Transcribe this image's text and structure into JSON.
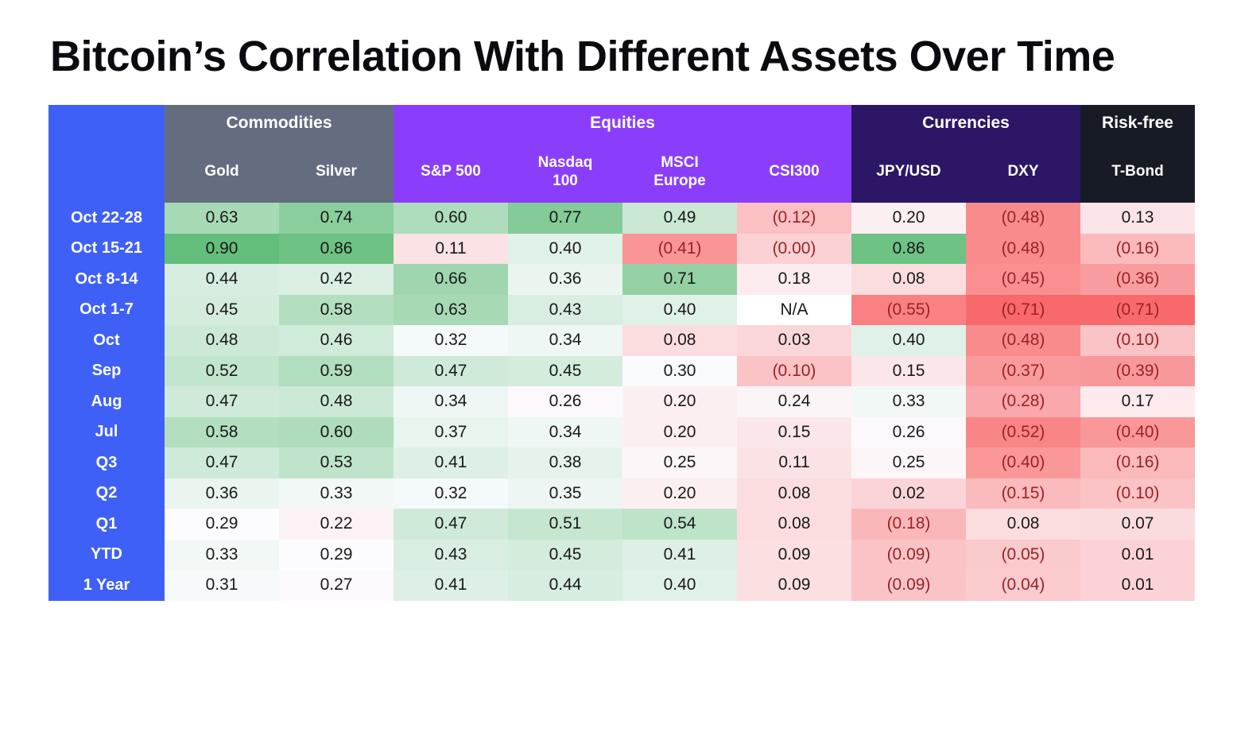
{
  "page": {
    "title": "Bitcoin’s Correlation With Different Assets Over Time"
  },
  "table": {
    "row_label_color": "#3f60f7",
    "positive_text_color": "#191919",
    "negative_text_color": "#9b2226",
    "na_background": "#ffffff",
    "groups": [
      {
        "label": "Commodities",
        "color": "#646d80"
      },
      {
        "label": "Equities",
        "color": "#8a3efb"
      },
      {
        "label": "Currencies",
        "color": "#2b1766"
      },
      {
        "label": "Risk-free",
        "color": "#171b26"
      }
    ],
    "columns": [
      {
        "label": "Gold",
        "group": 0
      },
      {
        "label": "Silver",
        "group": 0
      },
      {
        "label": "S&P 500",
        "group": 1
      },
      {
        "label": "Nasdaq\n100",
        "group": 1
      },
      {
        "label": "MSCI\nEurope",
        "group": 1
      },
      {
        "label": "CSI300",
        "group": 1
      },
      {
        "label": "JPY/USD",
        "group": 2
      },
      {
        "label": "DXY",
        "group": 2
      },
      {
        "label": "T-Bond",
        "group": 3
      }
    ]
  },
  "chart_data": {
    "type": "heatmap",
    "title": "Bitcoin’s Correlation With Different Assets Over Time",
    "column_groups": [
      "Commodities",
      "Commodities",
      "Equities",
      "Equities",
      "Equities",
      "Equities",
      "Currencies",
      "Currencies",
      "Risk-free"
    ],
    "column_labels": [
      "Gold",
      "Silver",
      "S&P 500",
      "Nasdaq 100",
      "MSCI Europe",
      "CSI300",
      "JPY/USD",
      "DXY",
      "T-Bond"
    ],
    "row_labels": [
      "Oct 22-28",
      "Oct 15-21",
      "Oct 8-14",
      "Oct 1-7",
      "Oct",
      "Sep",
      "Aug",
      "Jul",
      "Q3",
      "Q2",
      "Q1",
      "YTD",
      "1 Year"
    ],
    "values": [
      [
        0.63,
        0.74,
        0.6,
        0.77,
        0.49,
        -0.12,
        0.2,
        -0.48,
        0.13
      ],
      [
        0.9,
        0.86,
        0.11,
        0.4,
        -0.41,
        -0.0,
        0.86,
        -0.48,
        -0.16
      ],
      [
        0.44,
        0.42,
        0.66,
        0.36,
        0.71,
        0.18,
        0.08,
        -0.45,
        -0.36
      ],
      [
        0.45,
        0.58,
        0.63,
        0.43,
        0.4,
        null,
        -0.55,
        -0.71,
        -0.71
      ],
      [
        0.48,
        0.46,
        0.32,
        0.34,
        0.08,
        0.03,
        0.4,
        -0.48,
        -0.1
      ],
      [
        0.52,
        0.59,
        0.47,
        0.45,
        0.3,
        -0.1,
        0.15,
        -0.37,
        -0.39
      ],
      [
        0.47,
        0.48,
        0.34,
        0.26,
        0.2,
        0.24,
        0.33,
        -0.28,
        0.17
      ],
      [
        0.58,
        0.6,
        0.37,
        0.34,
        0.2,
        0.15,
        0.26,
        -0.52,
        -0.4
      ],
      [
        0.47,
        0.53,
        0.41,
        0.38,
        0.25,
        0.11,
        0.25,
        -0.4,
        -0.16
      ],
      [
        0.36,
        0.33,
        0.32,
        0.35,
        0.2,
        0.08,
        0.02,
        -0.15,
        -0.1
      ],
      [
        0.29,
        0.22,
        0.47,
        0.51,
        0.54,
        0.08,
        -0.18,
        0.08,
        0.07
      ],
      [
        0.33,
        0.29,
        0.43,
        0.45,
        0.41,
        0.09,
        -0.09,
        -0.05,
        0.01
      ],
      [
        0.31,
        0.27,
        0.41,
        0.44,
        0.4,
        0.09,
        -0.09,
        -0.04,
        0.01
      ]
    ],
    "display": [
      [
        "0.63",
        "0.74",
        "0.60",
        "0.77",
        "0.49",
        "(0.12)",
        "0.20",
        "(0.48)",
        "0.13"
      ],
      [
        "0.90",
        "0.86",
        "0.11",
        "0.40",
        "(0.41)",
        "(0.00)",
        "0.86",
        "(0.48)",
        "(0.16)"
      ],
      [
        "0.44",
        "0.42",
        "0.66",
        "0.36",
        "0.71",
        "0.18",
        "0.08",
        "(0.45)",
        "(0.36)"
      ],
      [
        "0.45",
        "0.58",
        "0.63",
        "0.43",
        "0.40",
        "N/A",
        "(0.55)",
        "(0.71)",
        "(0.71)"
      ],
      [
        "0.48",
        "0.46",
        "0.32",
        "0.34",
        "0.08",
        "0.03",
        "0.40",
        "(0.48)",
        "(0.10)"
      ],
      [
        "0.52",
        "0.59",
        "0.47",
        "0.45",
        "0.30",
        "(0.10)",
        "0.15",
        "(0.37)",
        "(0.39)"
      ],
      [
        "0.47",
        "0.48",
        "0.34",
        "0.26",
        "0.20",
        "0.24",
        "0.33",
        "(0.28)",
        "0.17"
      ],
      [
        "0.58",
        "0.60",
        "0.37",
        "0.34",
        "0.20",
        "0.15",
        "0.26",
        "(0.52)",
        "(0.40)"
      ],
      [
        "0.47",
        "0.53",
        "0.41",
        "0.38",
        "0.25",
        "0.11",
        "0.25",
        "(0.40)",
        "(0.16)"
      ],
      [
        "0.36",
        "0.33",
        "0.32",
        "0.35",
        "0.20",
        "0.08",
        "0.02",
        "(0.15)",
        "(0.10)"
      ],
      [
        "0.29",
        "0.22",
        "0.47",
        "0.51",
        "0.54",
        "0.08",
        "(0.18)",
        "0.08",
        "0.07"
      ],
      [
        "0.33",
        "0.29",
        "0.43",
        "0.45",
        "0.41",
        "0.09",
        "(0.09)",
        "(0.05)",
        "0.01"
      ],
      [
        "0.31",
        "0.27",
        "0.41",
        "0.44",
        "0.40",
        "0.09",
        "(0.09)",
        "(0.04)",
        "0.01"
      ]
    ],
    "na_text": "N/A",
    "negative_format": "parentheses",
    "color_scale": {
      "min": -0.71,
      "mid": 0.29,
      "max": 0.9,
      "min_color": "#F8696B",
      "mid_color": "#FCFCFF",
      "max_color": "#63BE7B"
    },
    "layout": {
      "legend": false,
      "grid": false
    }
  }
}
